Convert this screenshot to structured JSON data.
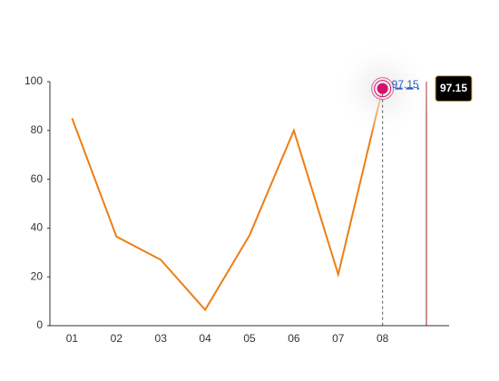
{
  "chart_data": {
    "type": "line",
    "categories": [
      "01",
      "02",
      "03",
      "04",
      "05",
      "06",
      "07",
      "08",
      null
    ],
    "series": [
      {
        "color": "#ee7d14",
        "values": [
          85,
          36.5,
          27,
          6.5,
          37,
          80,
          21,
          97.15,
          null
        ]
      }
    ],
    "ylim": [
      0,
      100
    ],
    "yticks": [
      0,
      20,
      40,
      60,
      80,
      100
    ],
    "highlight_index": 7
  }
}
